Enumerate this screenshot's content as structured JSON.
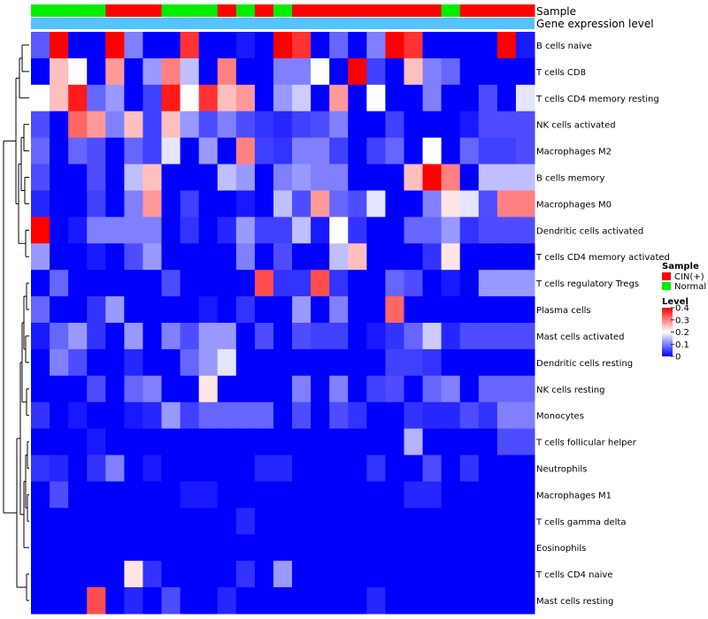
{
  "chart_data": {
    "type": "heatmap",
    "title": "",
    "annotation_labels": {
      "sample": "Sample",
      "expression": "Gene expression level"
    },
    "rows": [
      "B cells naive",
      "T cells CD8",
      "T cells CD4 memory resting",
      "NK cells activated",
      "Macrophages M2",
      "B cells memory",
      "Macrophages M0",
      "Dendritic cells activated",
      "T cells CD4 memory activated",
      "T cells regulatory  Tregs",
      "Plasma cells",
      "Mast cells activated",
      "Dendritic cells resting",
      "NK cells resting",
      "Monocytes",
      "T cells follicular helper",
      "Neutrophils",
      "Macrophages M1",
      "T cells gamma delta",
      "Eosinophils",
      "T cells CD4 naive",
      "Mast cells resting"
    ],
    "sample_groups": [
      "N",
      "N",
      "N",
      "N",
      "C",
      "C",
      "C",
      "N",
      "N",
      "N",
      "C",
      "N",
      "C",
      "N",
      "C",
      "C",
      "C",
      "C",
      "C",
      "C",
      "C",
      "C",
      "N",
      "C",
      "C",
      "C",
      "C"
    ],
    "values": [
      [
        0.07,
        0.4,
        0.0,
        0.0,
        0.4,
        0.1,
        0.0,
        0.0,
        0.36,
        0.0,
        0.0,
        0.02,
        0.0,
        0.4,
        0.36,
        0.0,
        0.08,
        0.0,
        0.1,
        0.4,
        0.36,
        0.0,
        0.0,
        0.0,
        0.0,
        0.4,
        0.02
      ],
      [
        0.0,
        0.25,
        0.2,
        0.0,
        0.28,
        0.0,
        0.12,
        0.3,
        0.15,
        0.0,
        0.3,
        0.0,
        0.0,
        0.1,
        0.1,
        0.2,
        0.0,
        0.4,
        0.05,
        0.0,
        0.25,
        0.1,
        0.08,
        0.0,
        0.0,
        0.0,
        0.0
      ],
      [
        0.2,
        0.25,
        0.38,
        0.08,
        0.12,
        0.0,
        0.05,
        0.38,
        0.2,
        0.36,
        0.25,
        0.28,
        0.0,
        0.12,
        0.16,
        0.0,
        0.28,
        0.0,
        0.2,
        0.0,
        0.0,
        0.1,
        0.0,
        0.0,
        0.06,
        0.0,
        0.18
      ],
      [
        0.06,
        0.0,
        0.32,
        0.28,
        0.1,
        0.25,
        0.05,
        0.25,
        0.12,
        0.06,
        0.1,
        0.06,
        0.04,
        0.03,
        0.05,
        0.06,
        0.1,
        0.0,
        0.0,
        0.05,
        0.0,
        0.0,
        0.0,
        0.02,
        0.06,
        0.06,
        0.06
      ],
      [
        0.08,
        0.0,
        0.08,
        0.06,
        0.0,
        0.08,
        0.05,
        0.18,
        0.0,
        0.12,
        0.0,
        0.3,
        0.05,
        0.04,
        0.1,
        0.1,
        0.05,
        0.0,
        0.05,
        0.08,
        0.0,
        0.2,
        0.0,
        0.08,
        0.05,
        0.05,
        0.06
      ],
      [
        0.06,
        0.0,
        0.0,
        0.06,
        0.0,
        0.15,
        0.25,
        0.0,
        0.0,
        0.0,
        0.15,
        0.12,
        0.0,
        0.1,
        0.12,
        0.1,
        0.1,
        0.0,
        0.0,
        0.0,
        0.25,
        0.4,
        0.3,
        0.0,
        0.15,
        0.15,
        0.15
      ],
      [
        0.03,
        0.0,
        0.0,
        0.05,
        0.0,
        0.1,
        0.28,
        0.0,
        0.05,
        0.0,
        0.0,
        0.02,
        0.0,
        0.15,
        0.06,
        0.28,
        0.08,
        0.06,
        0.18,
        0.0,
        0.0,
        0.1,
        0.22,
        0.18,
        0.06,
        0.3,
        0.3
      ],
      [
        0.4,
        0.0,
        0.02,
        0.1,
        0.1,
        0.1,
        0.1,
        0.0,
        0.04,
        0.0,
        0.03,
        0.12,
        0.05,
        0.05,
        0.15,
        0.02,
        0.2,
        0.04,
        0.0,
        0.0,
        0.08,
        0.08,
        0.12,
        0.04,
        0.06,
        0.06,
        0.06
      ],
      [
        0.12,
        0.0,
        0.0,
        0.02,
        0.0,
        0.06,
        0.12,
        0.0,
        0.0,
        0.0,
        0.0,
        0.1,
        0.0,
        0.06,
        0.0,
        0.0,
        0.15,
        0.25,
        0.0,
        0.0,
        0.0,
        0.04,
        0.22,
        0.0,
        0.0,
        0.0,
        0.0
      ],
      [
        0.0,
        0.08,
        0.0,
        0.0,
        0.0,
        0.0,
        0.0,
        0.06,
        0.0,
        0.0,
        0.0,
        0.0,
        0.34,
        0.04,
        0.04,
        0.34,
        0.04,
        0.0,
        0.0,
        0.08,
        0.06,
        0.0,
        0.02,
        0.0,
        0.12,
        0.12,
        0.12
      ],
      [
        0.08,
        0.0,
        0.0,
        0.04,
        0.12,
        0.0,
        0.0,
        0.0,
        0.0,
        0.02,
        0.0,
        0.04,
        0.0,
        0.0,
        0.12,
        0.0,
        0.1,
        0.0,
        0.0,
        0.32,
        0.0,
        0.0,
        0.0,
        0.0,
        0.0,
        0.0,
        0.0
      ],
      [
        0.02,
        0.08,
        0.12,
        0.04,
        0.0,
        0.12,
        0.0,
        0.1,
        0.06,
        0.12,
        0.12,
        0.0,
        0.06,
        0.0,
        0.06,
        0.05,
        0.05,
        0.0,
        0.02,
        0.04,
        0.08,
        0.16,
        0.03,
        0.06,
        0.06,
        0.06,
        0.06
      ],
      [
        0.0,
        0.1,
        0.06,
        0.0,
        0.0,
        0.03,
        0.0,
        0.0,
        0.08,
        0.12,
        0.18,
        0.0,
        0.0,
        0.0,
        0.0,
        0.0,
        0.0,
        0.0,
        0.0,
        0.05,
        0.05,
        0.04,
        0.0,
        0.0,
        0.0,
        0.0,
        0.0
      ],
      [
        0.0,
        0.0,
        0.0,
        0.06,
        0.0,
        0.08,
        0.1,
        0.0,
        0.0,
        0.22,
        0.0,
        0.0,
        0.0,
        0.0,
        0.1,
        0.0,
        0.1,
        0.0,
        0.05,
        0.06,
        0.0,
        0.08,
        0.1,
        0.0,
        0.08,
        0.08,
        0.08
      ],
      [
        0.04,
        0.0,
        0.02,
        0.0,
        0.0,
        0.02,
        0.03,
        0.12,
        0.05,
        0.08,
        0.08,
        0.08,
        0.08,
        0.0,
        0.06,
        0.0,
        0.06,
        0.04,
        0.0,
        0.0,
        0.04,
        0.03,
        0.03,
        0.06,
        0.04,
        0.1,
        0.1
      ],
      [
        0.0,
        0.0,
        0.0,
        0.02,
        0.0,
        0.0,
        0.0,
        0.0,
        0.0,
        0.0,
        0.0,
        0.0,
        0.0,
        0.0,
        0.0,
        0.0,
        0.0,
        0.0,
        0.0,
        0.0,
        0.14,
        0.0,
        0.0,
        0.0,
        0.0,
        0.06,
        0.06
      ],
      [
        0.04,
        0.03,
        0.0,
        0.04,
        0.1,
        0.0,
        0.02,
        0.0,
        0.0,
        0.0,
        0.0,
        0.0,
        0.03,
        0.03,
        0.0,
        0.0,
        0.0,
        0.0,
        0.04,
        0.0,
        0.0,
        0.06,
        0.0,
        0.04,
        0.0,
        0.0,
        0.0
      ],
      [
        0.0,
        0.06,
        0.0,
        0.0,
        0.0,
        0.0,
        0.0,
        0.0,
        0.02,
        0.02,
        0.0,
        0.0,
        0.0,
        0.0,
        0.0,
        0.0,
        0.0,
        0.0,
        0.0,
        0.0,
        0.03,
        0.03,
        0.0,
        0.0,
        0.0,
        0.0,
        0.0
      ],
      [
        0.0,
        0.0,
        0.0,
        0.0,
        0.0,
        0.0,
        0.0,
        0.0,
        0.0,
        0.0,
        0.0,
        0.03,
        0.0,
        0.0,
        0.0,
        0.0,
        0.0,
        0.0,
        0.0,
        0.0,
        0.0,
        0.0,
        0.0,
        0.0,
        0.0,
        0.0,
        0.0
      ],
      [
        0.0,
        0.0,
        0.0,
        0.0,
        0.0,
        0.0,
        0.0,
        0.0,
        0.0,
        0.0,
        0.0,
        0.0,
        0.0,
        0.0,
        0.0,
        0.0,
        0.0,
        0.0,
        0.0,
        0.0,
        0.0,
        0.0,
        0.0,
        0.0,
        0.0,
        0.0,
        0.0
      ],
      [
        0.0,
        0.0,
        0.0,
        0.0,
        0.0,
        0.22,
        0.04,
        0.0,
        0.0,
        0.0,
        0.0,
        0.04,
        0.0,
        0.12,
        0.0,
        0.0,
        0.0,
        0.0,
        0.0,
        0.0,
        0.0,
        0.0,
        0.0,
        0.0,
        0.0,
        0.0,
        0.0
      ],
      [
        0.0,
        0.0,
        0.0,
        0.34,
        0.0,
        0.03,
        0.0,
        0.06,
        0.0,
        0.0,
        0.03,
        0.0,
        0.0,
        0.0,
        0.0,
        0.0,
        0.0,
        0.0,
        0.03,
        0.0,
        0.0,
        0.0,
        0.0,
        0.0,
        0.0,
        0.0,
        0.0
      ]
    ],
    "color_scale": {
      "low": "#0000ff",
      "mid": "#ffffff",
      "high": "#ff0000",
      "min": 0,
      "max": 0.4
    },
    "expression_bar_color": "#55c3ff",
    "legend": {
      "sample_title": "Sample",
      "sample_entries": [
        {
          "label": "CIN(+)",
          "color": "#ff0000"
        },
        {
          "label": "Normal",
          "color": "#00ee00"
        }
      ],
      "level_title": "Level",
      "level_ticks": [
        "0.4",
        "0.3",
        "0.2",
        "0.1",
        "0"
      ],
      "level_tick_values": [
        0.4,
        0.3,
        0.2,
        0.1,
        0
      ]
    }
  }
}
